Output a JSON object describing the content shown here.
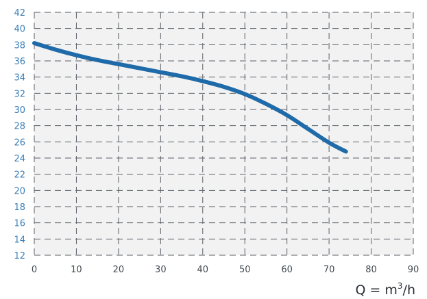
{
  "chart_data": {
    "type": "line",
    "title": "",
    "xlabel": "Q = m",
    "xlabel_sup": "3",
    "xlabel_suffix": "/h",
    "ylabel": "",
    "xlim": [
      0,
      90
    ],
    "ylim": [
      12,
      42
    ],
    "xticks": [
      0,
      10,
      20,
      30,
      40,
      50,
      60,
      70,
      80,
      90
    ],
    "yticks": [
      12,
      14,
      16,
      18,
      20,
      22,
      24,
      26,
      28,
      30,
      32,
      34,
      36,
      38,
      40,
      42
    ],
    "grid": true,
    "legend": "none",
    "series": [
      {
        "color": "#1f6aa8",
        "x": [
          0,
          5,
          10,
          15,
          20,
          25,
          30,
          35,
          40,
          45,
          50,
          55,
          60,
          65,
          70,
          74
        ],
        "y": [
          38.2,
          37.4,
          36.7,
          36.1,
          35.6,
          35.1,
          34.6,
          34.1,
          33.5,
          32.8,
          31.9,
          30.7,
          29.3,
          27.6,
          25.9,
          24.8
        ]
      }
    ]
  },
  "colors": {
    "background": "#ffffff",
    "plot_bg": "#f2f2f2",
    "grid": "#5a5f66",
    "ytick": "#3b7fb8",
    "xtick": "#444a50",
    "line": "#1f6aa8"
  }
}
